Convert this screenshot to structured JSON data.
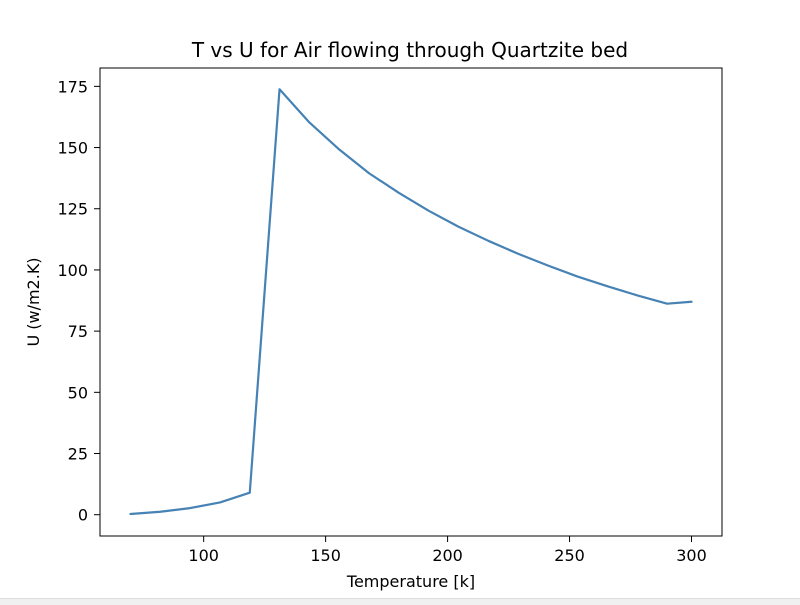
{
  "chart_data": {
    "type": "line",
    "title": "T vs U for Air flowing through Quartzite bed",
    "xlabel": "Temperature [k]",
    "ylabel": "U (w/m2.K)",
    "xlim": [
      57.5,
      312.5
    ],
    "ylim": [
      -8.7,
      182.5
    ],
    "xticks": [
      100,
      150,
      200,
      250,
      300
    ],
    "yticks": [
      0,
      25,
      50,
      75,
      100,
      125,
      150,
      175
    ],
    "grid": false,
    "legend": "none",
    "series": [
      {
        "color": "#4682b4",
        "x": [
          70,
          82.2,
          94.4,
          106.7,
          118.9,
          131.1,
          143.3,
          155.6,
          167.8,
          180,
          192.2,
          204.4,
          216.7,
          228.9,
          241.1,
          253.3,
          265.6,
          277.8,
          290,
          300
        ],
        "y": [
          0.3,
          1.2,
          2.7,
          5,
          9,
          173.8,
          160.3,
          149.2,
          139.5,
          131.5,
          124.2,
          117.7,
          111.9,
          106.6,
          101.8,
          97.3,
          93.3,
          89.6,
          86.2,
          87
        ]
      }
    ]
  }
}
